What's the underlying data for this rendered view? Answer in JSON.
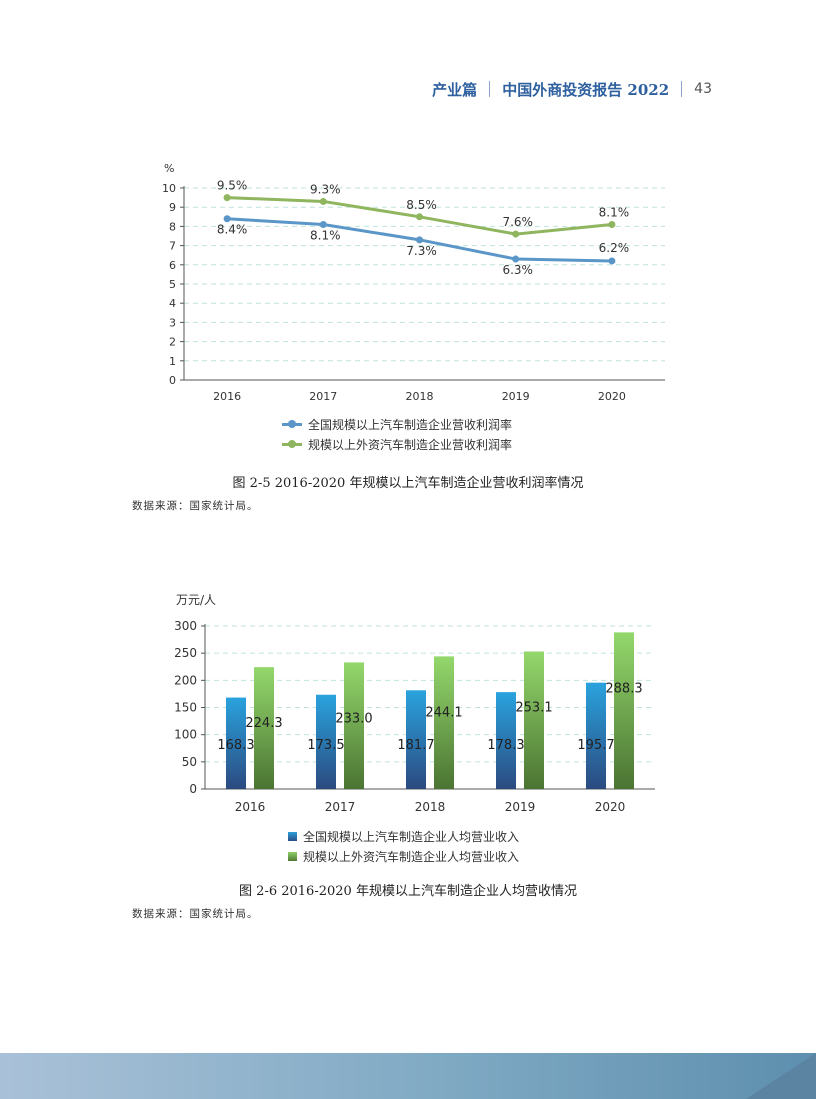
{
  "header": {
    "section": "产业篇",
    "title": "中国外商投资报告 2022",
    "page": "43"
  },
  "chart_data": [
    {
      "type": "line",
      "ylabel": "%",
      "x": [
        "2016",
        "2017",
        "2018",
        "2019",
        "2020"
      ],
      "ylim": [
        0,
        10
      ],
      "yticks": [
        "0",
        "1",
        "2",
        "3",
        "4",
        "5",
        "6",
        "7",
        "8",
        "9",
        "10"
      ],
      "grid": true,
      "legend": "bottom",
      "series": [
        {
          "name": "全国规模以上汽车制造企业营收利润率",
          "color": "#5a96c8",
          "values": [
            8.4,
            8.1,
            7.3,
            6.3,
            6.2
          ],
          "labels": [
            "8.4%",
            "8.1%",
            "7.3%",
            "6.3%",
            "6.2%"
          ]
        },
        {
          "name": "规模以上外资汽车制造企业营收利润率",
          "color": "#8fb55e",
          "values": [
            9.5,
            9.3,
            8.5,
            7.6,
            8.1
          ],
          "labels": [
            "9.5%",
            "9.3%",
            "8.5%",
            "7.6%",
            "8.1%"
          ]
        }
      ],
      "caption": "图 2-5 2016-2020 年规模以上汽车制造企业营收利润率情况",
      "source": "数据来源：国家统计局。"
    },
    {
      "type": "bar",
      "ylabel": "万元/人",
      "categories": [
        "2016",
        "2017",
        "2018",
        "2019",
        "2020"
      ],
      "ylim": [
        0,
        300
      ],
      "yticks": [
        "0",
        "50",
        "100",
        "150",
        "200",
        "250",
        "300"
      ],
      "grid": true,
      "legend": "bottom",
      "series": [
        {
          "name": "全国规模以上汽车制造企业人均营业收入",
          "color": "#2a9fd8",
          "values": [
            168.3,
            173.5,
            181.7,
            178.3,
            195.7
          ],
          "labels": [
            "168.3",
            "173.5",
            "181.7",
            "178.3",
            "195.7"
          ]
        },
        {
          "name": "规模以上外资汽车制造企业人均营业收入",
          "color": "#8fd06a",
          "values": [
            224.3,
            233.0,
            244.1,
            253.1,
            288.3
          ],
          "labels": [
            "224.3",
            "233.0",
            "244.1",
            "253.1",
            "288.3"
          ]
        }
      ],
      "caption": "图 2-6 2016-2020 年规模以上汽车制造企业人均营收情况",
      "source": "数据来源：国家统计局。"
    }
  ]
}
